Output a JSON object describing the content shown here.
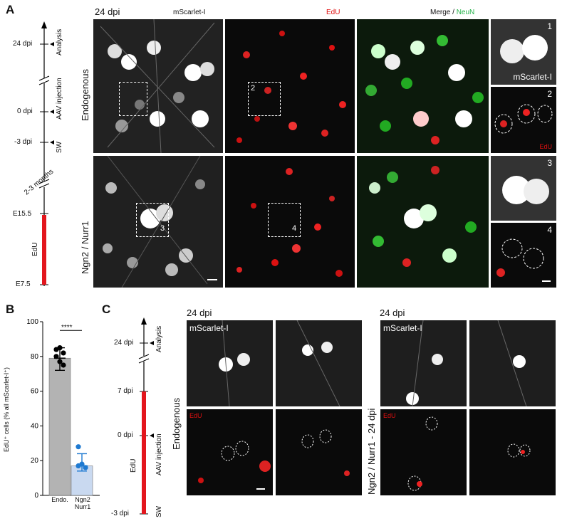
{
  "panel_a": {
    "letter": "A",
    "timeline": {
      "ticks": [
        {
          "label": "24 dpi",
          "event": "Analysis"
        },
        {
          "label": "0 dpi",
          "event": "AAV injection"
        },
        {
          "label": "-3 dpi",
          "event": "SW"
        }
      ],
      "gap_label": "2-3 months",
      "edu_label": "EdU",
      "edu_start": "E15.5",
      "edu_end": "E7.5"
    },
    "header_dpi": "24 dpi",
    "col_mscarlet": "mScarlet-I",
    "col_edu": "EdU",
    "col_merge": "Merge / ",
    "col_neun": "NeuN",
    "row_endogenous": "Endogenous",
    "row_ngn2": "Ngn2 / Nurr1",
    "inset_nums": [
      "1",
      "2",
      "3",
      "4"
    ],
    "inset_mscarlet": "mScarlet-I",
    "inset_edu": "EdU",
    "box_nums": [
      "2",
      "3",
      "4"
    ]
  },
  "panel_b": {
    "letter": "B",
    "ylabel": "EdU⁺ cells (% all mScarlet-I⁺)",
    "significance": "****",
    "categories": [
      "Endo.",
      "Ngn2\nNurr1"
    ]
  },
  "chart_data": {
    "type": "bar",
    "categories": [
      "Endo.",
      "Ngn2 Nurr1"
    ],
    "values": [
      79,
      17
    ],
    "points": [
      [
        84,
        85,
        82,
        80,
        77,
        75
      ],
      [
        28,
        18,
        16,
        17
      ]
    ],
    "error": [
      [
        72,
        85
      ],
      [
        14,
        24
      ]
    ],
    "ylabel": "EdU⁺ cells (% all mScarlet-I⁺)",
    "yticks": [
      0,
      20,
      40,
      60,
      80,
      100
    ],
    "ylim": [
      0,
      100
    ],
    "colors": [
      "#b3b3b3",
      "#c9d9f0"
    ]
  },
  "panel_c": {
    "letter": "C",
    "timeline": {
      "ticks": [
        {
          "label": "24 dpi",
          "event": "Analysis"
        },
        {
          "label": "7 dpi",
          "event": ""
        },
        {
          "label": "0 dpi",
          "event": "AAV injection"
        },
        {
          "label": "-3 dpi",
          "event": "SW"
        }
      ],
      "edu_label": "EdU"
    },
    "left_dpi": "24 dpi",
    "right_dpi": "24 dpi",
    "left_row": "Endogenous",
    "right_row": "Ngn2 / Nurr1 - 24 dpi",
    "mscarlet": "mScarlet-I",
    "edu": "EdU"
  }
}
